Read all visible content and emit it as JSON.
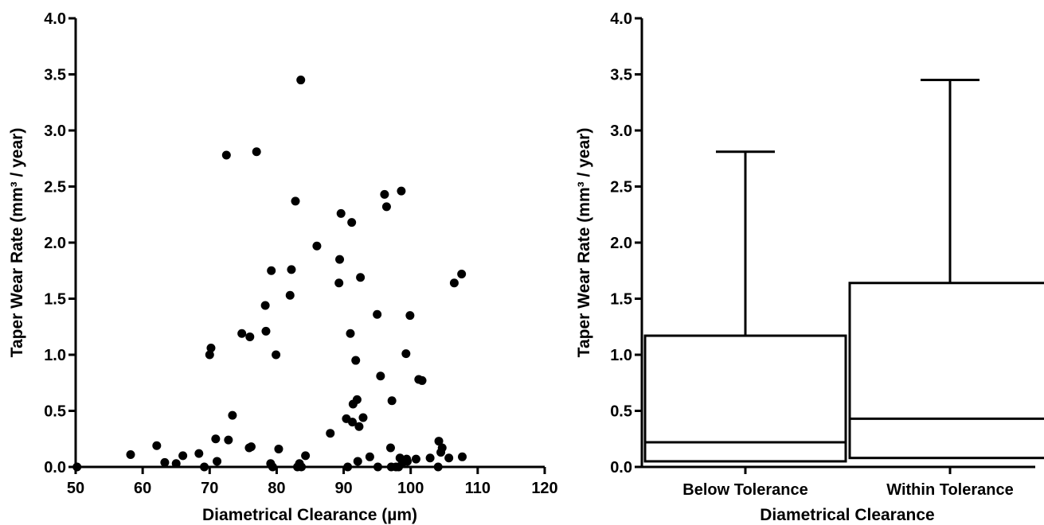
{
  "chart_data": [
    {
      "type": "scatter",
      "title": "",
      "xlabel": "Diametrical Clearance  (µm)",
      "ylabel": "Taper Wear Rate (mm³ / year)",
      "xlim": [
        50,
        120
      ],
      "ylim": [
        0,
        4.0
      ],
      "xticks": [
        "50",
        "60",
        "70",
        "80",
        "90",
        "100",
        "110",
        "120"
      ],
      "yticks": [
        "0.0",
        "0.5",
        "1.0",
        "1.5",
        "2.0",
        "2.5",
        "3.0",
        "3.5",
        "4.0"
      ],
      "grid": false,
      "marker_color": "#000000",
      "points": [
        [
          50.2,
          0.0
        ],
        [
          58.2,
          0.11
        ],
        [
          62.1,
          0.19
        ],
        [
          63.3,
          0.04
        ],
        [
          65.0,
          0.03
        ],
        [
          66.0,
          0.1
        ],
        [
          68.4,
          0.12
        ],
        [
          69.2,
          0.0
        ],
        [
          70.0,
          1.0
        ],
        [
          70.2,
          1.06
        ],
        [
          70.9,
          0.25
        ],
        [
          71.1,
          0.05
        ],
        [
          72.5,
          2.78
        ],
        [
          72.8,
          0.24
        ],
        [
          73.4,
          0.46
        ],
        [
          74.8,
          1.19
        ],
        [
          75.9,
          0.17
        ],
        [
          76.0,
          1.16
        ],
        [
          76.2,
          0.18
        ],
        [
          77.0,
          2.81
        ],
        [
          78.3,
          1.44
        ],
        [
          78.4,
          1.21
        ],
        [
          79.1,
          0.03
        ],
        [
          79.2,
          1.75
        ],
        [
          79.4,
          0.0
        ],
        [
          79.9,
          1.0
        ],
        [
          80.3,
          0.16
        ],
        [
          82.0,
          1.53
        ],
        [
          82.2,
          1.76
        ],
        [
          82.8,
          2.37
        ],
        [
          83.1,
          0.0
        ],
        [
          83.4,
          0.03
        ],
        [
          83.6,
          3.45
        ],
        [
          83.7,
          0.0
        ],
        [
          84.3,
          0.1
        ],
        [
          86.0,
          1.97
        ],
        [
          88.0,
          0.3
        ],
        [
          89.3,
          1.64
        ],
        [
          89.4,
          1.85
        ],
        [
          89.6,
          2.26
        ],
        [
          90.4,
          0.43
        ],
        [
          90.6,
          0.0
        ],
        [
          91.0,
          1.19
        ],
        [
          91.2,
          2.18
        ],
        [
          91.3,
          0.4
        ],
        [
          91.4,
          0.56
        ],
        [
          91.8,
          0.95
        ],
        [
          92.0,
          0.6
        ],
        [
          92.1,
          0.05
        ],
        [
          92.3,
          0.36
        ],
        [
          92.5,
          1.69
        ],
        [
          92.9,
          0.44
        ],
        [
          93.9,
          0.09
        ],
        [
          95.0,
          1.36
        ],
        [
          95.1,
          0.0
        ],
        [
          95.5,
          0.81
        ],
        [
          96.1,
          2.43
        ],
        [
          96.4,
          2.32
        ],
        [
          97.0,
          0.17
        ],
        [
          97.1,
          0.0
        ],
        [
          97.2,
          0.59
        ],
        [
          97.8,
          0.0
        ],
        [
          98.2,
          0.0
        ],
        [
          98.4,
          0.08
        ],
        [
          98.6,
          2.46
        ],
        [
          98.8,
          0.04
        ],
        [
          99.3,
          1.01
        ],
        [
          99.4,
          0.07
        ],
        [
          99.5,
          0.05
        ],
        [
          99.9,
          1.35
        ],
        [
          100.8,
          0.07
        ],
        [
          101.2,
          0.78
        ],
        [
          101.7,
          0.77
        ],
        [
          102.9,
          0.08
        ],
        [
          104.1,
          0.0
        ],
        [
          104.2,
          0.23
        ],
        [
          104.5,
          0.13
        ],
        [
          104.7,
          0.17
        ],
        [
          105.7,
          0.08
        ],
        [
          106.5,
          1.64
        ],
        [
          107.6,
          1.72
        ],
        [
          107.7,
          0.09
        ]
      ]
    },
    {
      "type": "box",
      "title": "",
      "xlabel": "Diametrical Clearance",
      "ylabel": "Taper Wear Rate (mm³ / year)",
      "ylim": [
        0,
        4.0
      ],
      "yticks": [
        "0.0",
        "0.5",
        "1.0",
        "1.5",
        "2.0",
        "2.5",
        "3.0",
        "3.5",
        "4.0"
      ],
      "categories": [
        "Below Tolerance",
        "Within Tolerance"
      ],
      "boxes": [
        {
          "name": "Below Tolerance",
          "min": 0.05,
          "q1": 0.05,
          "median": 0.22,
          "q3": 1.17,
          "max": 2.81
        },
        {
          "name": "Within Tolerance",
          "min": 0.08,
          "q1": 0.08,
          "median": 0.43,
          "q3": 1.64,
          "max": 3.45
        }
      ],
      "grid": false
    }
  ]
}
